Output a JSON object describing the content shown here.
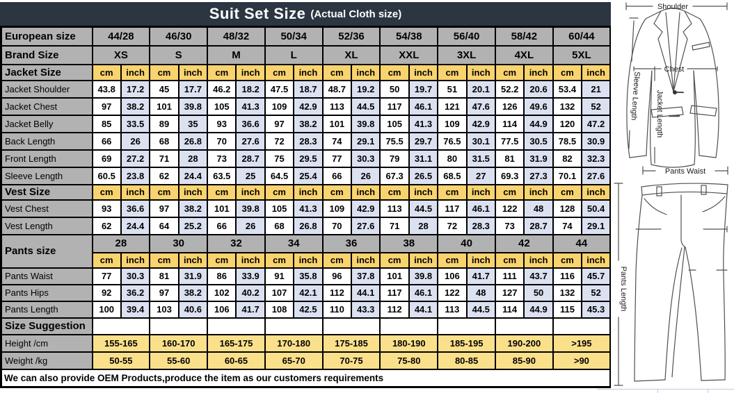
{
  "title": {
    "main": "Suit Set Size",
    "sub": "(Actual Cloth size)"
  },
  "labels": {
    "european": "European size",
    "brand": "Brand Size",
    "jacket": "Jacket Size",
    "vest": "Vest Size",
    "pants": "Pants size",
    "suggestion": "Size Suggestion",
    "cm": "cm",
    "inch": "inch"
  },
  "columns": {
    "european": [
      "44/28",
      "46/30",
      "48/32",
      "50/34",
      "52/36",
      "54/38",
      "56/40",
      "58/42",
      "60/44"
    ],
    "brand": [
      "XS",
      "S",
      "M",
      "L",
      "XL",
      "XXL",
      "3XL",
      "4XL",
      "5XL"
    ],
    "pants": [
      "28",
      "30",
      "32",
      "34",
      "36",
      "38",
      "40",
      "42",
      "44"
    ]
  },
  "jacket_rows": [
    {
      "label": "Jacket Shoulder",
      "cm": [
        43.8,
        45,
        46.2,
        47.5,
        48.7,
        50,
        51,
        52.2,
        53.4
      ],
      "inch": [
        17.2,
        17.7,
        18.2,
        18.7,
        19.2,
        19.7,
        20.1,
        20.6,
        21
      ]
    },
    {
      "label": "Jacket Chest",
      "cm": [
        97,
        101,
        105,
        109,
        113,
        117,
        121,
        126,
        132
      ],
      "inch": [
        38.2,
        39.8,
        41.3,
        42.9,
        44.5,
        46.1,
        47.6,
        49.6,
        52
      ]
    },
    {
      "label": "Jacket Belly",
      "cm": [
        85,
        89,
        93,
        97,
        101,
        105,
        109,
        114,
        120
      ],
      "inch": [
        33.5,
        35,
        36.6,
        38.2,
        39.8,
        41.3,
        42.9,
        44.9,
        47.2
      ]
    },
    {
      "label": "Back Length",
      "cm": [
        66,
        68,
        70,
        72,
        74,
        75.5,
        76.5,
        77.5,
        78.5
      ],
      "inch": [
        26,
        26.8,
        27.6,
        28.3,
        29.1,
        29.7,
        30.1,
        30.5,
        30.9
      ]
    },
    {
      "label": "Front Length",
      "cm": [
        69,
        71,
        73,
        75,
        77,
        79,
        80,
        81,
        82
      ],
      "inch": [
        27.2,
        28,
        28.7,
        29.5,
        30.3,
        31.1,
        31.5,
        31.9,
        32.3
      ]
    },
    {
      "label": "Sleeve Length",
      "cm": [
        60.5,
        62,
        63.5,
        64.5,
        66,
        67.3,
        68.5,
        69.3,
        70.1
      ],
      "inch": [
        23.8,
        24.4,
        25,
        25.4,
        26,
        26.5,
        27,
        27.3,
        27.6
      ]
    }
  ],
  "vest_rows": [
    {
      "label": "Vest Chest",
      "cm": [
        93,
        97,
        101,
        105,
        109,
        113,
        117,
        122,
        128
      ],
      "inch": [
        36.6,
        38.2,
        39.8,
        41.3,
        42.9,
        44.5,
        46.1,
        48,
        50.4
      ]
    },
    {
      "label": "Vest Length",
      "cm": [
        62,
        64,
        66,
        68,
        70,
        71,
        72,
        73,
        74
      ],
      "inch": [
        24.4,
        25.2,
        26,
        26.8,
        27.6,
        28,
        28.3,
        28.7,
        29.1
      ]
    }
  ],
  "pants_rows": [
    {
      "label": "Pants Waist",
      "cm": [
        77,
        81,
        86,
        91,
        96,
        101,
        106,
        111,
        116
      ],
      "inch": [
        30.3,
        31.9,
        33.9,
        35.8,
        37.8,
        39.8,
        41.7,
        43.7,
        45.7
      ]
    },
    {
      "label": "Pants Hips",
      "cm": [
        92,
        97,
        102,
        107,
        112,
        117,
        122,
        127,
        132
      ],
      "inch": [
        36.2,
        38.2,
        40.2,
        42.1,
        44.1,
        46.1,
        48,
        50,
        52
      ]
    },
    {
      "label": "Pants Length",
      "cm": [
        100,
        103,
        106,
        108,
        110,
        112,
        113,
        114,
        115
      ],
      "inch": [
        39.4,
        40.6,
        41.7,
        42.5,
        43.3,
        44.1,
        44.5,
        44.9,
        45.3
      ]
    }
  ],
  "suggestion_rows": [
    {
      "label": "Height /cm",
      "values": [
        "155-165",
        "160-170",
        "165-175",
        "170-180",
        "175-185",
        "180-190",
        "185-195",
        "190-200",
        ">195"
      ]
    },
    {
      "label": "Weight /kg",
      "values": [
        "50-55",
        "55-60",
        "60-65",
        "65-70",
        "70-75",
        "75-80",
        "80-85",
        "85-90",
        ">90"
      ]
    }
  ],
  "footer_note": "We can also provide OEM Products,produce the item as our customers requirements",
  "diagram": {
    "shoulder": "Shoulder",
    "chest": "Chest",
    "jacket_length": "Jacket Length",
    "sleeve_length": "Sleeve Length",
    "pants_waist": "Pants Waist",
    "pants_length": "Pants Length"
  },
  "colors": {
    "header_navy": "#2c3542",
    "section_gray": "#b2b2b2",
    "unit_yellow": "#f9d36e",
    "inch_lavender": "#dbe1f1",
    "suggestion_yellow": "#fbe08c",
    "grid_blue": "#b8c9dc"
  }
}
